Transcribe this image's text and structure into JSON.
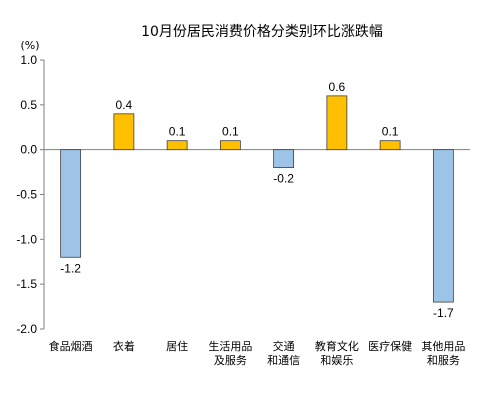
{
  "chart_data": {
    "type": "bar",
    "title": "10月份居民消费价格分类别环比涨跌幅",
    "unit": "(%)",
    "categories": [
      [
        "食品烟酒"
      ],
      [
        "衣着"
      ],
      [
        "居住"
      ],
      [
        "生活用品",
        "及服务"
      ],
      [
        "交通",
        "和通信"
      ],
      [
        "教育文化",
        "和娱乐"
      ],
      [
        "医疗保健"
      ],
      [
        "其他用品",
        "和服务"
      ]
    ],
    "values": [
      -1.2,
      0.4,
      0.1,
      0.1,
      -0.2,
      0.6,
      0.1,
      -1.7
    ],
    "value_labels": [
      "-1.2",
      "0.4",
      "0.1",
      "0.1",
      "-0.2",
      "0.6",
      "0.1",
      "-1.7"
    ],
    "ylim": [
      -2.0,
      1.0
    ],
    "yticks": [
      1.0,
      0.5,
      0.0,
      -0.5,
      -1.0,
      -1.5,
      -2.0
    ],
    "ytick_labels": [
      "1.0",
      "0.5",
      "0.0",
      "-0.5",
      "-1.0",
      "-1.5",
      "-2.0"
    ],
    "grid": false,
    "colors": {
      "positive_fill": "#FFC000",
      "negative_fill": "#9DC3E6",
      "bar_stroke": "#3F3F3F",
      "axis": "#808080"
    }
  }
}
